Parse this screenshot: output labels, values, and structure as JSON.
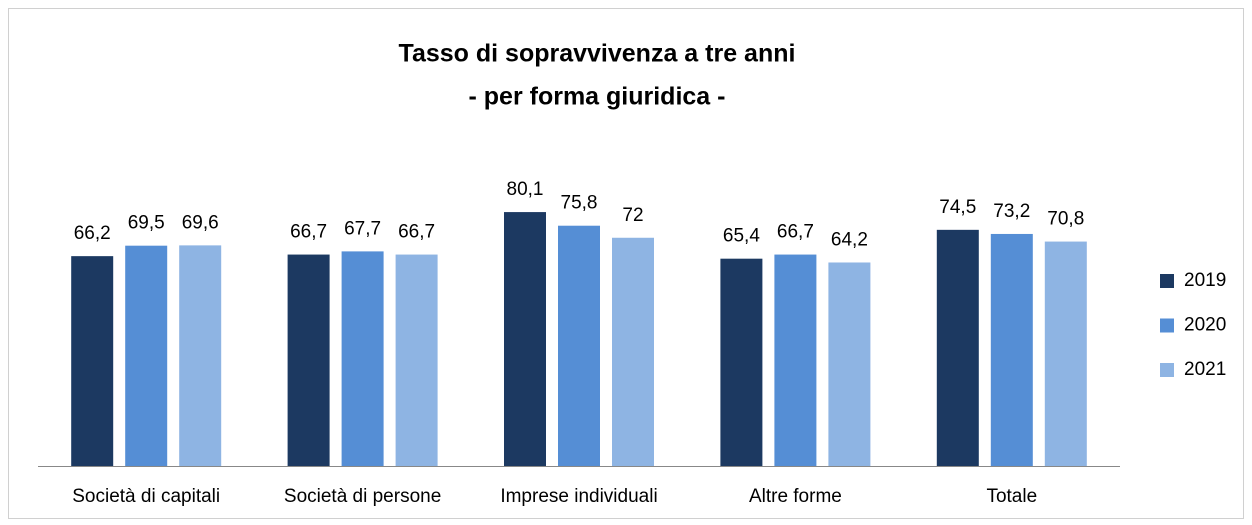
{
  "chart_data": {
    "type": "bar",
    "title": "Tasso di sopravvivenza a tre anni",
    "subtitle": "- per forma giuridica -",
    "categories": [
      "Società di capitali",
      "Società di persone",
      "Imprese individuali",
      "Altre forme",
      "Totale"
    ],
    "series": [
      {
        "name": "2019",
        "color": "#1c3961",
        "values": [
          66.2,
          66.7,
          80.1,
          65.4,
          74.5
        ],
        "value_labels": [
          "66,2",
          "66,7",
          "80,1",
          "65,4",
          "74,5"
        ]
      },
      {
        "name": "2020",
        "color": "#558ed5",
        "values": [
          69.5,
          67.7,
          75.8,
          66.7,
          73.2
        ],
        "value_labels": [
          "69,5",
          "67,7",
          "75,8",
          "66,7",
          "73,2"
        ]
      },
      {
        "name": "2021",
        "color": "#8eb4e3",
        "values": [
          69.6,
          66.7,
          72,
          64.2,
          70.8
        ],
        "value_labels": [
          "69,6",
          "66,7",
          "72",
          "64,2",
          "70,8"
        ]
      }
    ],
    "ylim": [
      0,
      100
    ],
    "legend": "right"
  }
}
